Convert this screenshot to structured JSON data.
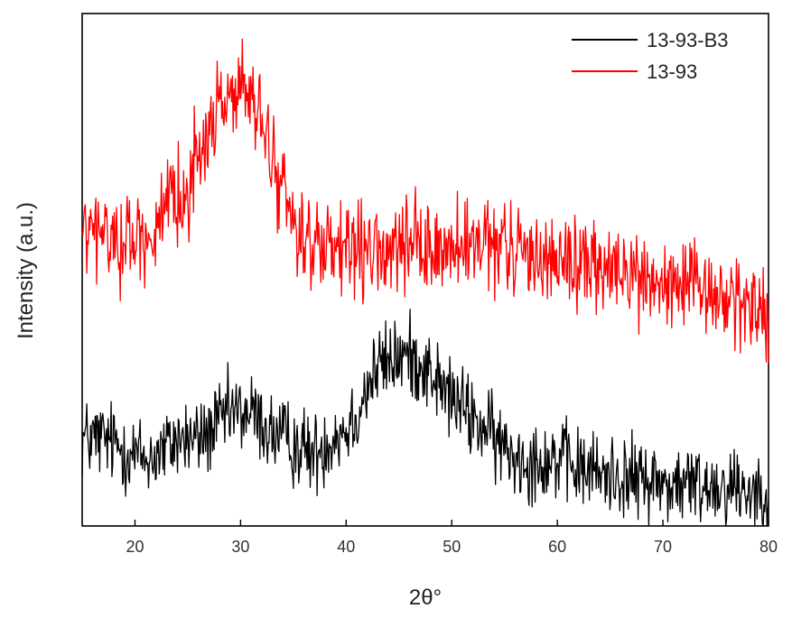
{
  "chart_data": {
    "type": "line",
    "xlabel": "2θ°",
    "ylabel": "Intensity (a.u.)",
    "xlim": [
      15,
      80
    ],
    "ylim": [
      0,
      100
    ],
    "x_ticks": [
      "20",
      "30",
      "40",
      "50",
      "60",
      "70",
      "80"
    ],
    "x_tick_values": [
      20,
      30,
      40,
      50,
      60,
      70,
      80
    ],
    "y_ticks_shown": false,
    "grid": false,
    "legend_position": "top-right",
    "series": [
      {
        "name": "13-93-B3",
        "color": "#000000",
        "x": [
          15,
          16,
          17,
          18,
          19,
          20,
          21,
          22,
          23,
          24,
          25,
          26,
          27,
          28,
          29,
          30,
          31,
          32,
          33,
          34,
          35,
          36,
          37,
          38,
          39,
          40,
          41,
          42,
          43,
          44,
          45,
          46,
          47,
          48,
          49,
          50,
          51,
          52,
          53,
          54,
          55,
          56,
          57,
          58,
          59,
          60,
          61,
          62,
          63,
          64,
          65,
          66,
          67,
          68,
          69,
          70,
          71,
          72,
          73,
          74,
          75,
          76,
          77,
          78,
          79,
          80
        ],
        "values": [
          17,
          17,
          17,
          16,
          15,
          14,
          13,
          14,
          15,
          17,
          17,
          17,
          18,
          20,
          22,
          22,
          22,
          20,
          18,
          17,
          16,
          15,
          14,
          16,
          18,
          19,
          22,
          27,
          31,
          32,
          33,
          33,
          32,
          30,
          27,
          25,
          23,
          21,
          19,
          17,
          15,
          14,
          13,
          13,
          13,
          13,
          12,
          11,
          11,
          10,
          10,
          10,
          9,
          9,
          9,
          8,
          8,
          8,
          8,
          8,
          8,
          8,
          8,
          7,
          7,
          7
        ],
        "noise": 4
      },
      {
        "name": "13-93",
        "color": "#ff0000",
        "x": [
          15,
          16,
          17,
          18,
          19,
          20,
          21,
          22,
          23,
          24,
          25,
          26,
          27,
          28,
          29,
          30,
          31,
          32,
          33,
          34,
          35,
          36,
          37,
          38,
          39,
          40,
          41,
          42,
          43,
          44,
          45,
          46,
          47,
          48,
          49,
          50,
          51,
          52,
          53,
          54,
          55,
          56,
          57,
          58,
          59,
          60,
          61,
          62,
          63,
          64,
          65,
          66,
          67,
          68,
          69,
          70,
          71,
          72,
          73,
          74,
          75,
          76,
          77,
          78,
          79,
          80
        ],
        "values": [
          57,
          57,
          57,
          56,
          56,
          56,
          57,
          58,
          60,
          63,
          67,
          72,
          77,
          82,
          85,
          85,
          83,
          78,
          72,
          65,
          60,
          57,
          54,
          53,
          53,
          53,
          53,
          53,
          53,
          53,
          54,
          54,
          54,
          54,
          54,
          54,
          54,
          54,
          54,
          54,
          54,
          54,
          53,
          53,
          53,
          52,
          52,
          51,
          51,
          50,
          50,
          49,
          49,
          48,
          48,
          47,
          47,
          46,
          46,
          45,
          45,
          44,
          44,
          43,
          43,
          42
        ],
        "noise": 4.5
      }
    ]
  }
}
